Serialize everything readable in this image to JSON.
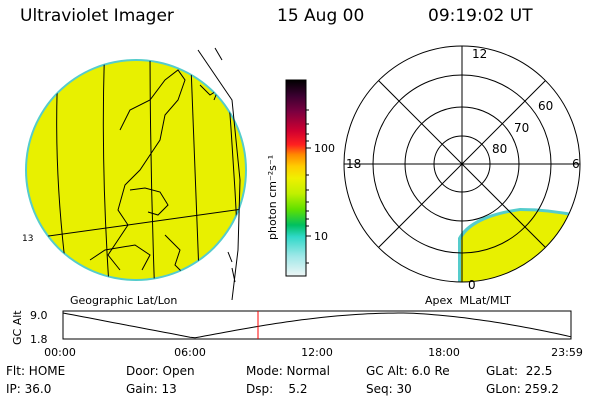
{
  "header": {
    "instrument": "Ultraviolet Imager",
    "date": "15 Aug 00",
    "time": "09:19:02 UT"
  },
  "geo_panel": {
    "caption": "Geographic Lat/Lon",
    "edge_label": "13",
    "fill_color": "#e8f000",
    "edge_color": "#55cccc"
  },
  "colorbar": {
    "unit_label": "photon cm⁻²s⁻¹",
    "ticks": [
      "100",
      "10"
    ],
    "scale": "log",
    "colors_top_to_bottom": [
      "#000000",
      "#3a0030",
      "#7a0040",
      "#c00030",
      "#ff2020",
      "#ff8800",
      "#ffcc00",
      "#f0f000",
      "#c0f000",
      "#60e000",
      "#00c060",
      "#30d8c8",
      "#a0e8e8",
      "#e8f4f4"
    ]
  },
  "polar_panel": {
    "caption": "Apex  MLat/MLT",
    "mlt_labels": {
      "top": "12",
      "left": "18",
      "right": "6",
      "bottom": "0"
    },
    "mlat_labels": [
      "60",
      "70",
      "80"
    ]
  },
  "gc_alt_plot": {
    "ylabel": "GC Alt",
    "ymax_label": "9.0",
    "ymin_label": "1.8",
    "xticks": [
      "00:00",
      "06:00",
      "12:00",
      "18:00",
      "23:59"
    ],
    "cursor_time": "09:19",
    "cursor_color": "#ff0000"
  },
  "status": {
    "row1": {
      "flt": "Flt: HOME",
      "door": "Door: Open",
      "mode": "Mode: Normal",
      "gcalt": "GC Alt: 6.0 Re",
      "glat": "GLat:  22.5"
    },
    "row2": {
      "ip": "IP: 36.0",
      "gain": "Gain: 13",
      "dsp": "Dsp:    5.2",
      "seq": "Seq: 30",
      "glon": "GLon: 259.2"
    }
  }
}
